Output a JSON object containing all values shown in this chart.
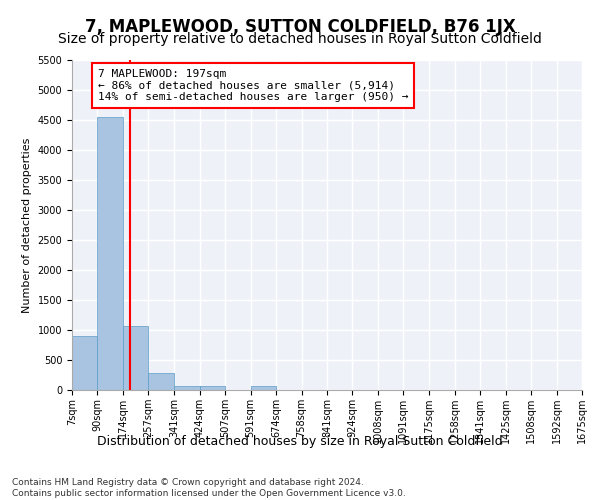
{
  "title": "7, MAPLEWOOD, SUTTON COLDFIELD, B76 1JX",
  "subtitle": "Size of property relative to detached houses in Royal Sutton Coldfield",
  "xlabel": "Distribution of detached houses by size in Royal Sutton Coldfield",
  "ylabel": "Number of detached properties",
  "footer_line1": "Contains HM Land Registry data © Crown copyright and database right 2024.",
  "footer_line2": "Contains public sector information licensed under the Open Government Licence v3.0.",
  "bins": [
    7,
    90,
    174,
    257,
    341,
    424,
    507,
    591,
    674,
    758,
    841,
    924,
    1008,
    1091,
    1175,
    1258,
    1341,
    1425,
    1508,
    1592,
    1675
  ],
  "counts": [
    900,
    4550,
    1060,
    290,
    75,
    60,
    0,
    70,
    0,
    0,
    0,
    0,
    0,
    0,
    0,
    0,
    0,
    0,
    0,
    0
  ],
  "bar_color": "#a8c4e0",
  "bar_edgecolor": "#5a9dc8",
  "property_size": 197,
  "vline_color": "red",
  "annotation_text": "7 MAPLEWOOD: 197sqm\n← 86% of detached houses are smaller (5,914)\n14% of semi-detached houses are larger (950) →",
  "annotation_bbox_edgecolor": "red",
  "annotation_bbox_facecolor": "white",
  "ylim": [
    0,
    5500
  ],
  "yticks": [
    0,
    500,
    1000,
    1500,
    2000,
    2500,
    3000,
    3500,
    4000,
    4500,
    5000,
    5500
  ],
  "background_color": "#eef2f8",
  "grid_color": "white",
  "title_fontsize": 12,
  "subtitle_fontsize": 10,
  "xlabel_fontsize": 9,
  "ylabel_fontsize": 8,
  "tick_fontsize": 7,
  "annotation_fontsize": 8
}
